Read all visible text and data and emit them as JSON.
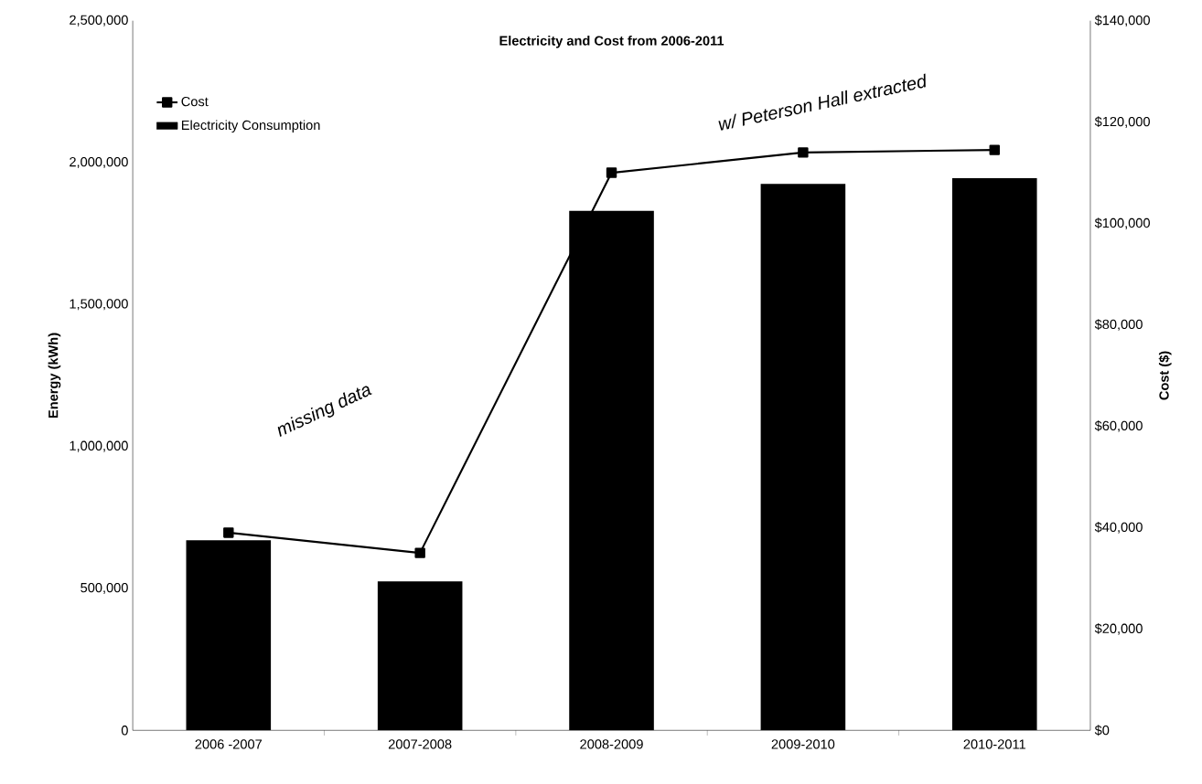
{
  "chart_data": {
    "type": "bar",
    "title": "Electricity and Cost from 2006-2011",
    "ylabel": "Energy (kWh)",
    "y2label": "Cost ($)",
    "categories": [
      "2006 -2007",
      "2007-2008",
      "2008-2009",
      "2009-2010",
      "2010-2011"
    ],
    "series": [
      {
        "name": "Electricity Consumption",
        "color": "#000000",
        "values": [
          670000,
          525000,
          1830000,
          1925000,
          1945000
        ]
      },
      {
        "name": "Cost",
        "type": "line",
        "axis": "y2",
        "color": "#000000",
        "marker": "square",
        "values": [
          39000,
          35000,
          110000,
          114000,
          114500
        ]
      }
    ],
    "ylim": [
      0,
      2500000
    ],
    "yticks": [
      {
        "value": 0,
        "label": "0"
      },
      {
        "value": 500000,
        "label": "500,000"
      },
      {
        "value": 1000000,
        "label": "1,000,000"
      },
      {
        "value": 1500000,
        "label": "1,500,000"
      },
      {
        "value": 2000000,
        "label": "2,000,000"
      },
      {
        "value": 2500000,
        "label": "2,500,000"
      }
    ],
    "y2lim": [
      0,
      140000
    ],
    "y2ticks": [
      {
        "value": 0,
        "label": "$0"
      },
      {
        "value": 20000,
        "label": "$20,000"
      },
      {
        "value": 40000,
        "label": "$40,000"
      },
      {
        "value": 60000,
        "label": "$60,000"
      },
      {
        "value": 80000,
        "label": "$80,000"
      },
      {
        "value": 100000,
        "label": "$100,000"
      },
      {
        "value": 120000,
        "label": "$120,000"
      },
      {
        "value": 140000,
        "label": "$140,000"
      }
    ],
    "legend": "top left",
    "annotations": [
      "missing data",
      "w/ Peterson Hall extracted"
    ]
  }
}
